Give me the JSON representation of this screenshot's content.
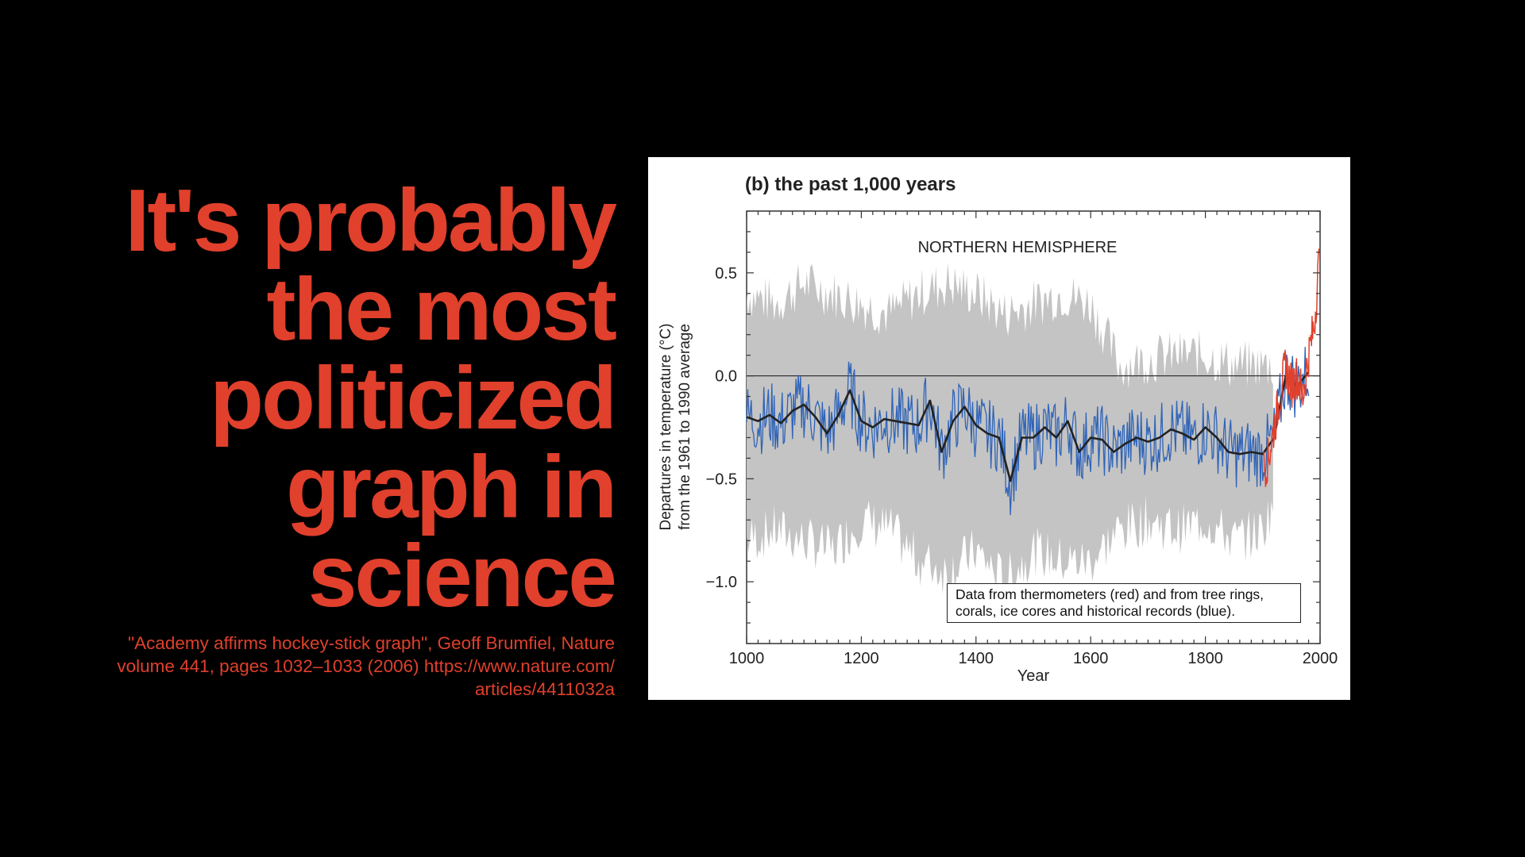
{
  "slide": {
    "headline_lines": [
      "It's probably",
      "the most",
      "politicized",
      "graph in",
      "science"
    ],
    "citation_lines": [
      "\"Academy affirms hockey-stick graph\", Geoff Brumfiel, Nature",
      "volume 441, pages 1032–1033 (2006) https://www.nature.com/",
      "articles/4411032a"
    ],
    "text_color": "#e0402c",
    "background": "#000000"
  },
  "chart_data": {
    "type": "line",
    "title": "(b) the past 1,000 years",
    "annotation": "NORTHERN HEMISPHERE",
    "xlabel": "Year",
    "ylabel_lines": [
      "Departures in temperature (°C)",
      "from the 1961 to 1990 average"
    ],
    "xlim": [
      1000,
      2000
    ],
    "ylim": [
      -1.3,
      0.8
    ],
    "x_ticks": [
      1000,
      1200,
      1400,
      1600,
      1800,
      2000
    ],
    "y_ticks": [
      0.5,
      0.0,
      -0.5,
      -1.0
    ],
    "y_tick_labels": [
      "0.5",
      "0.0",
      "−0.5",
      "−1.0"
    ],
    "legend_lines": [
      "Data from thermometers (red) and from tree rings,",
      "corals, ice cores and historical records (blue)."
    ],
    "colors": {
      "thermometer": "#e0402c",
      "proxy": "#2f64b8",
      "smoothed": "#222222",
      "uncertainty": "#c4c4c4"
    },
    "series": [
      {
        "name": "smoothed proxy reconstruction",
        "x": [
          1000,
          1020,
          1040,
          1060,
          1080,
          1100,
          1120,
          1140,
          1160,
          1180,
          1200,
          1220,
          1240,
          1260,
          1280,
          1300,
          1320,
          1340,
          1360,
          1380,
          1400,
          1420,
          1440,
          1460,
          1480,
          1500,
          1520,
          1540,
          1560,
          1580,
          1600,
          1620,
          1640,
          1660,
          1680,
          1700,
          1720,
          1740,
          1760,
          1780,
          1800,
          1820,
          1840,
          1860,
          1880,
          1900,
          1920,
          1940,
          1960,
          1980
        ],
        "y": [
          -0.2,
          -0.22,
          -0.19,
          -0.23,
          -0.17,
          -0.14,
          -0.2,
          -0.28,
          -0.19,
          -0.07,
          -0.22,
          -0.25,
          -0.21,
          -0.22,
          -0.23,
          -0.24,
          -0.12,
          -0.37,
          -0.22,
          -0.15,
          -0.24,
          -0.28,
          -0.3,
          -0.51,
          -0.3,
          -0.3,
          -0.25,
          -0.3,
          -0.22,
          -0.37,
          -0.3,
          -0.31,
          -0.37,
          -0.33,
          -0.3,
          -0.32,
          -0.3,
          -0.26,
          -0.28,
          -0.31,
          -0.25,
          -0.3,
          -0.37,
          -0.38,
          -0.37,
          -0.38,
          -0.3,
          0.0,
          -0.05,
          0.02
        ]
      },
      {
        "name": "uncertainty band upper",
        "x": [
          1000,
          1050,
          1100,
          1150,
          1200,
          1250,
          1300,
          1350,
          1400,
          1450,
          1500,
          1550,
          1600,
          1650,
          1700,
          1750,
          1800,
          1850,
          1900,
          1920
        ],
        "y": [
          0.4,
          0.35,
          0.45,
          0.4,
          0.35,
          0.3,
          0.4,
          0.45,
          0.4,
          0.3,
          0.35,
          0.4,
          0.35,
          0.05,
          0.08,
          0.1,
          0.1,
          0.05,
          0.05,
          0.05
        ]
      },
      {
        "name": "uncertainty band lower",
        "x": [
          1000,
          1050,
          1100,
          1150,
          1200,
          1250,
          1300,
          1350,
          1400,
          1450,
          1500,
          1550,
          1600,
          1650,
          1700,
          1750,
          1800,
          1850,
          1900,
          1920
        ],
        "y": [
          -0.8,
          -0.75,
          -0.8,
          -0.85,
          -0.7,
          -0.75,
          -0.9,
          -0.95,
          -0.85,
          -1.0,
          -0.85,
          -0.9,
          -0.9,
          -0.75,
          -0.7,
          -0.75,
          -0.7,
          -0.8,
          -0.75,
          -0.6
        ]
      },
      {
        "name": "thermometer record",
        "x": [
          1902,
          1910,
          1920,
          1930,
          1940,
          1950,
          1960,
          1970,
          1980,
          1990,
          1998
        ],
        "y": [
          -0.45,
          -0.4,
          -0.25,
          -0.1,
          0.05,
          -0.05,
          0.0,
          -0.1,
          0.1,
          0.25,
          0.55
        ]
      }
    ]
  }
}
